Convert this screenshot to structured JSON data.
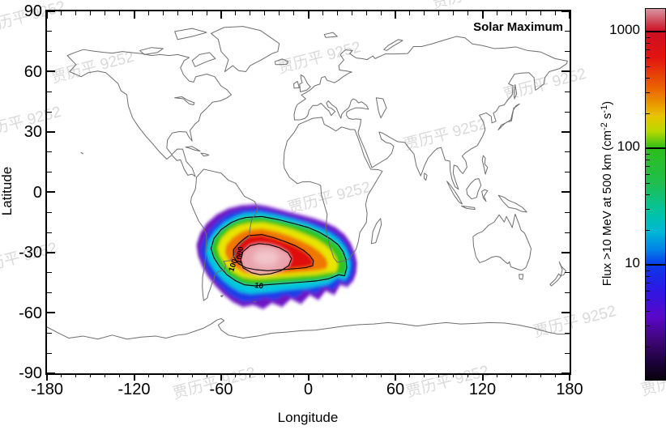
{
  "title": "Solar Maximum",
  "watermark": {
    "text": "贾历平 9252"
  },
  "axes": {
    "x": {
      "label": "Longitude",
      "ticks": [
        "-180",
        "-120",
        "-60",
        "0",
        "60",
        "120",
        "180"
      ]
    },
    "y": {
      "label": "Latitude",
      "ticks": [
        "90",
        "60",
        "30",
        "0",
        "-30",
        "-60",
        "-90"
      ]
    }
  },
  "colorbar": {
    "tick_labels": [
      "1000",
      "100",
      "10"
    ],
    "label_parts": [
      "Flux >10 MeV at 500 km (cm",
      "-2",
      " s",
      "-1",
      ")"
    ],
    "scale": "log",
    "colors": {
      "top_pink": "#d795a1",
      "red": "#e21311",
      "orange": "#ec6a00",
      "yellow": "#e8c400",
      "green": "#2ebe19",
      "cyan": "#00b8d4",
      "blue": "#0a39ea",
      "violet": "#5a07c8",
      "bottom_black": "#0a000d"
    }
  },
  "map": {
    "contour_labels": {
      "c10": "10",
      "c100": "100",
      "c1000": "1000"
    },
    "coastline_color": "#6e6e6e"
  },
  "chart_data": {
    "type": "heatmap",
    "subtype": "filled-contour-world-map",
    "title": "Solar Maximum",
    "xlabel": "Longitude",
    "ylabel": "Latitude",
    "xlim": [
      -180,
      180
    ],
    "ylim": [
      -90,
      90
    ],
    "x_major_ticks": [
      -180,
      -120,
      -60,
      0,
      60,
      120,
      180
    ],
    "y_major_ticks": [
      -90,
      -60,
      -30,
      0,
      30,
      60,
      90
    ],
    "minor_tick_step_deg": 10,
    "grid": false,
    "basemap": "world-coastlines",
    "colorbar": {
      "label": "Flux >10 MeV at 500 km (cm-2 s-1)",
      "scale": "log",
      "ticks": [
        10,
        100,
        1000
      ],
      "range_approx": [
        1,
        1800
      ],
      "colors_top_to_bottom": [
        "pink-red",
        "red",
        "orange",
        "yellow",
        "green",
        "cyan",
        "blue",
        "violet",
        "black"
      ]
    },
    "contour_levels_labeled": [
      10,
      100,
      1000
    ],
    "region": {
      "description": "Single enhanced proton-flux region over South America and the South Atlantic",
      "center_lon": -38,
      "center_lat": -33,
      "lon_extent": [
        -77,
        33
      ],
      "lat_extent": [
        -57,
        -6
      ],
      "peak_flux_approx": 1500,
      "contours": [
        {
          "level": 10,
          "lon_extent": [
            -73,
            27
          ],
          "lat_extent": [
            -54,
            -12
          ]
        },
        {
          "level": 100,
          "lon_extent": [
            -52,
            4
          ],
          "lat_extent": [
            -45,
            -21
          ]
        },
        {
          "level": 1000,
          "lon_extent": [
            -46,
            -11
          ],
          "lat_extent": [
            -41,
            -26
          ]
        }
      ]
    }
  }
}
